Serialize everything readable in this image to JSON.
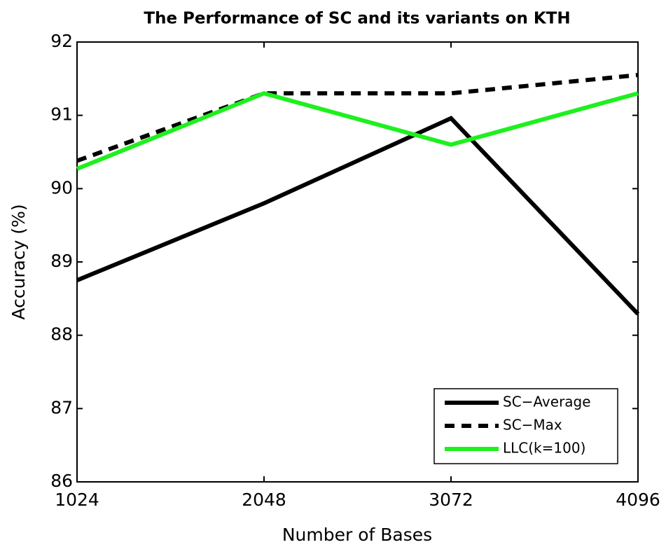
{
  "chart_data": {
    "type": "line",
    "title": "The Performance of SC and its variants on KTH",
    "x_label": "Number of Bases",
    "y_label": "Accuracy (%)",
    "x": [
      1024,
      2048,
      3072,
      4096
    ],
    "series": [
      {
        "name": "SC−Average",
        "color": "#000000",
        "linestyle": "solid",
        "values": [
          88.75,
          89.8,
          90.96,
          88.29
        ]
      },
      {
        "name": "SC−Max",
        "color": "#000000",
        "linestyle": "dashed",
        "values": [
          90.38,
          91.3,
          91.3,
          91.55
        ]
      },
      {
        "name": "LLC(k=100)",
        "color": "#1ef01e",
        "linestyle": "solid",
        "values": [
          90.27,
          91.3,
          90.6,
          91.3
        ]
      }
    ],
    "xlim": [
      1024,
      4096
    ],
    "xticks": [
      1024,
      2048,
      3072,
      4096
    ],
    "ylim": [
      86,
      92
    ],
    "yticks": [
      86,
      87,
      88,
      89,
      90,
      91,
      92
    ],
    "legend": "lower right",
    "grid": false
  }
}
